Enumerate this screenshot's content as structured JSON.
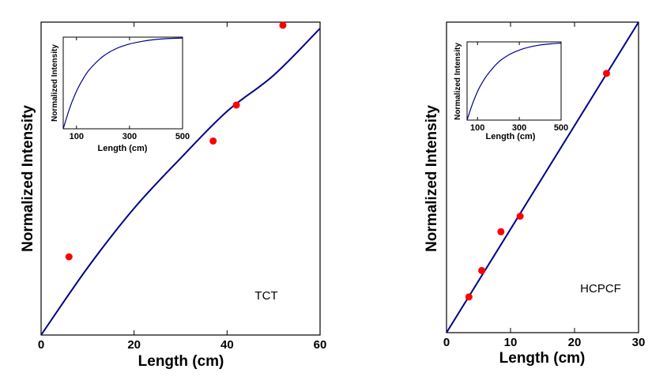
{
  "figure": {
    "colors": {
      "curve": "#00008b",
      "points": "#ff0000",
      "axes": "#000000"
    }
  },
  "chart_data": [
    {
      "type": "scatter",
      "annotation": "TCT",
      "xlabel": "Length (cm)",
      "ylabel": "Normalized Intensity",
      "xlim": [
        0,
        60
      ],
      "ylim": [
        0,
        1.0
      ],
      "xticks": [
        "0",
        "20",
        "40",
        "60"
      ],
      "series": [
        {
          "values": [
            [
              6,
              0.25
            ],
            [
              37,
              0.62
            ],
            [
              42,
              0.735
            ],
            [
              52,
              0.99
            ]
          ]
        },
        {
          "curve": "fit",
          "values": [
            [
              0,
              0
            ],
            [
              10,
              0.215
            ],
            [
              20,
              0.405
            ],
            [
              30,
              0.565
            ],
            [
              40,
              0.715
            ],
            [
              50,
              0.83
            ],
            [
              60,
              0.98
            ]
          ]
        }
      ],
      "inset": {
        "type": "line",
        "xlabel": "Length (cm)",
        "ylabel": "Normalized Intensity",
        "xlim": [
          50,
          500
        ],
        "ylim": [
          0,
          1.0
        ],
        "xticks": [
          "100",
          "300",
          "500"
        ],
        "values": [
          [
            50,
            0
          ],
          [
            75,
            0.23
          ],
          [
            100,
            0.41
          ],
          [
            125,
            0.545
          ],
          [
            150,
            0.65
          ],
          [
            200,
            0.79
          ],
          [
            250,
            0.875
          ],
          [
            300,
            0.925
          ],
          [
            350,
            0.955
          ],
          [
            400,
            0.975
          ],
          [
            450,
            0.985
          ],
          [
            500,
            0.99
          ]
        ]
      }
    },
    {
      "type": "scatter",
      "annotation": "HCPCF",
      "xlabel": "Length (cm)",
      "ylabel": "Normalized Intensity",
      "xlim": [
        0,
        30
      ],
      "ylim": [
        0,
        1.0
      ],
      "xticks": [
        "0",
        "10",
        "20",
        "30"
      ],
      "series": [
        {
          "values": [
            [
              3.5,
              0.115
            ],
            [
              5.5,
              0.2
            ],
            [
              8.5,
              0.325
            ],
            [
              11.5,
              0.375
            ],
            [
              25,
              0.835
            ]
          ]
        },
        {
          "curve": "fit",
          "values": [
            [
              0,
              0
            ],
            [
              30,
              1.0
            ]
          ]
        }
      ],
      "inset": {
        "type": "line",
        "xlabel": "Length (cm)",
        "ylabel": "Normalized Intensity",
        "xlim": [
          50,
          500
        ],
        "ylim": [
          0,
          1.0
        ],
        "xticks": [
          "100",
          "300",
          "500"
        ],
        "values": [
          [
            50,
            0
          ],
          [
            75,
            0.2
          ],
          [
            100,
            0.365
          ],
          [
            125,
            0.49
          ],
          [
            150,
            0.59
          ],
          [
            200,
            0.74
          ],
          [
            250,
            0.835
          ],
          [
            300,
            0.895
          ],
          [
            350,
            0.935
          ],
          [
            400,
            0.96
          ],
          [
            450,
            0.975
          ],
          [
            500,
            0.985
          ]
        ]
      }
    }
  ]
}
